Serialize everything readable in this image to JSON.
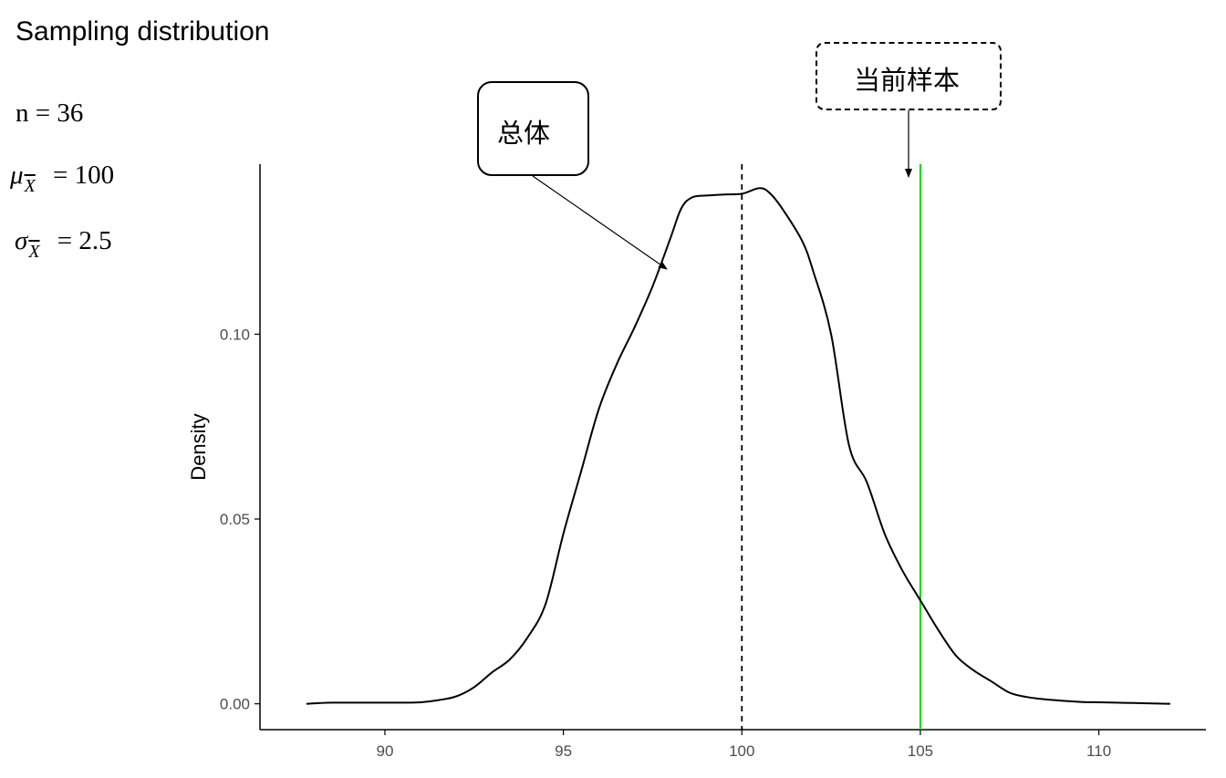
{
  "header": {
    "title": "Sampling distribution"
  },
  "stats": {
    "n": {
      "symbol": "n",
      "value": "= 36"
    },
    "mean": {
      "symbol": "μ",
      "subscript": "X",
      "value": "= 100"
    },
    "sd": {
      "symbol": "σ",
      "subscript": "X",
      "value": "= 2.5"
    }
  },
  "annotations": {
    "population_label": "总体",
    "current_sample_label": "当前样本"
  },
  "colors": {
    "curve": "#000000",
    "mean_line": "#000000",
    "sample_line": "#00dd00",
    "axis": "#000000",
    "tick_label": "#4d4d4d"
  },
  "chart_data": {
    "type": "line",
    "title": "Sampling distribution",
    "xlabel": "",
    "ylabel": "Density",
    "xlim": [
      86.5,
      113.0
    ],
    "ylim": [
      -0.007,
      0.146
    ],
    "x_ticks": [
      90,
      95,
      100,
      105,
      110
    ],
    "x_tick_labels": [
      "90",
      "95",
      "100",
      "105",
      "110"
    ],
    "y_ticks": [
      0.0,
      0.05,
      0.1
    ],
    "y_tick_labels": [
      "0.00",
      "0.05",
      "0.10"
    ],
    "grid": false,
    "series": [
      {
        "name": "",
        "x": [
          87.8,
          88.5,
          89.5,
          90.5,
          91.0,
          91.5,
          92.0,
          92.5,
          93.0,
          93.5,
          94.0,
          94.5,
          95.0,
          95.5,
          96.0,
          96.5,
          97.0,
          97.5,
          98.0,
          98.3,
          98.6,
          99.0,
          99.5,
          100.0,
          100.5,
          100.8,
          101.2,
          101.7,
          102.0,
          102.5,
          103.0,
          103.5,
          104.0,
          104.5,
          105.0,
          105.5,
          106.0,
          106.5,
          107.0,
          107.5,
          108.0,
          108.5,
          109.0,
          109.5,
          110.0,
          110.5,
          111.0,
          111.5,
          112.0
        ],
        "y": [
          0.0,
          0.0003,
          0.0003,
          0.0003,
          0.0004,
          0.001,
          0.002,
          0.0045,
          0.0085,
          0.012,
          0.018,
          0.027,
          0.046,
          0.063,
          0.08,
          0.092,
          0.102,
          0.113,
          0.126,
          0.134,
          0.137,
          0.1375,
          0.1378,
          0.138,
          0.1395,
          0.138,
          0.133,
          0.125,
          0.117,
          0.1,
          0.07,
          0.06,
          0.046,
          0.036,
          0.028,
          0.02,
          0.013,
          0.009,
          0.006,
          0.003,
          0.0018,
          0.0012,
          0.0008,
          0.0005,
          0.0004,
          0.0003,
          0.0002,
          0.0001,
          0.0
        ]
      }
    ],
    "reference_lines": [
      {
        "x": 100,
        "style": "dashed",
        "label": "总体"
      },
      {
        "x": 105,
        "style": "solid",
        "label": "当前样本"
      }
    ]
  }
}
